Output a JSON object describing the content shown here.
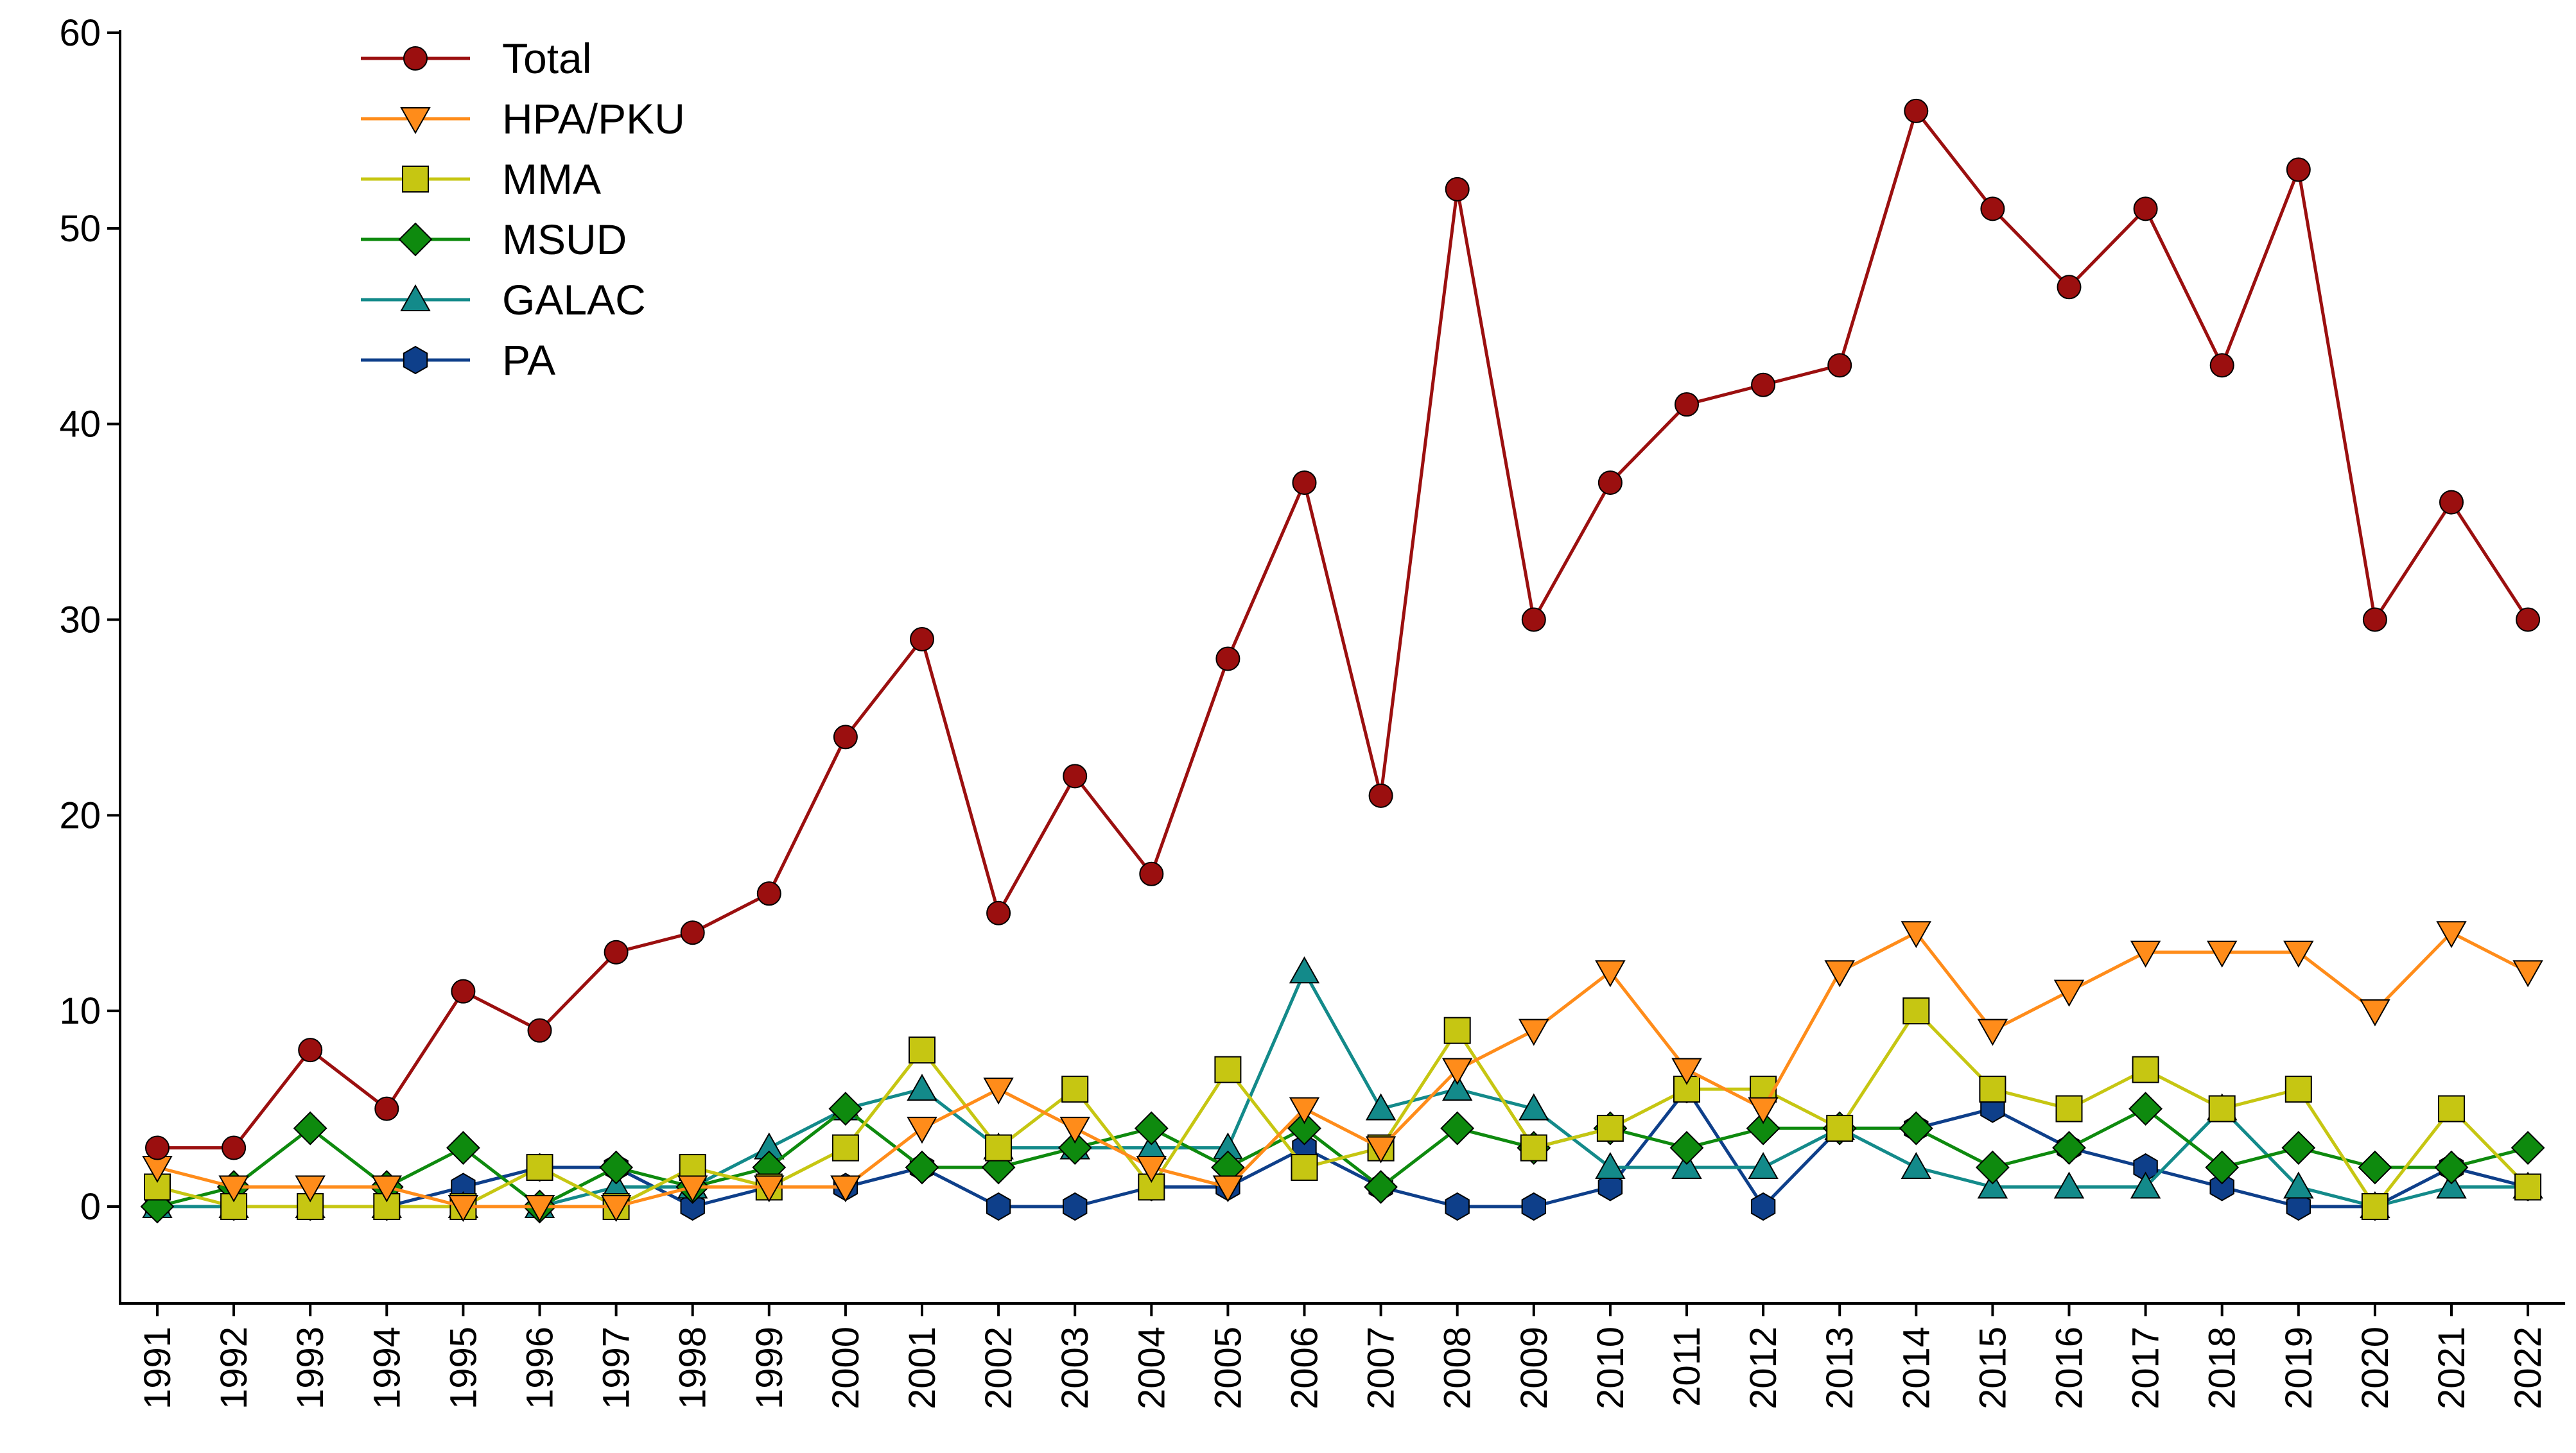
{
  "chart_data": {
    "type": "line",
    "title": "",
    "xlabel": "",
    "ylabel": "",
    "ylim": [
      -5,
      60
    ],
    "yticks": [
      0,
      10,
      20,
      30,
      40,
      50,
      60
    ],
    "legend_position": "top-left",
    "categories": [
      "1991",
      "1992",
      "1993",
      "1994",
      "1995",
      "1996",
      "1997",
      "1998",
      "1999",
      "2000",
      "2001",
      "2002",
      "2003",
      "2004",
      "2005",
      "2006",
      "2007",
      "2008",
      "2009",
      "2010",
      "2011",
      "2012",
      "2013",
      "2014",
      "2015",
      "2016",
      "2017",
      "2018",
      "2019",
      "2020",
      "2021",
      "2022"
    ],
    "series": [
      {
        "name": "Total",
        "color": "#9B0F0F",
        "marker": "circle",
        "values": [
          3,
          3,
          8,
          5,
          11,
          9,
          13,
          14,
          16,
          24,
          29,
          15,
          22,
          17,
          28,
          37,
          21,
          52,
          30,
          37,
          41,
          42,
          43,
          56,
          51,
          47,
          51,
          43,
          53,
          30,
          36,
          30
        ]
      },
      {
        "name": "HPA/PKU",
        "color": "#FF8C1A",
        "marker": "triangle-down",
        "values": [
          2,
          1,
          1,
          1,
          0,
          0,
          0,
          1,
          1,
          1,
          4,
          6,
          4,
          2,
          1,
          5,
          3,
          7,
          9,
          12,
          7,
          5,
          12,
          14,
          9,
          11,
          13,
          13,
          13,
          10,
          14,
          12
        ]
      },
      {
        "name": "MMA",
        "color": "#C6C612",
        "marker": "square",
        "values": [
          1,
          0,
          0,
          0,
          0,
          2,
          0,
          2,
          1,
          3,
          8,
          3,
          6,
          1,
          7,
          2,
          3,
          9,
          3,
          4,
          6,
          6,
          4,
          10,
          6,
          5,
          7,
          5,
          6,
          0,
          5,
          1
        ]
      },
      {
        "name": "MSUD",
        "color": "#0E8A0E",
        "marker": "diamond",
        "values": [
          0,
          1,
          4,
          1,
          3,
          0,
          2,
          1,
          2,
          5,
          2,
          2,
          3,
          4,
          2,
          4,
          1,
          4,
          3,
          4,
          3,
          4,
          4,
          4,
          2,
          3,
          5,
          2,
          3,
          2,
          2,
          3
        ]
      },
      {
        "name": "GALAC",
        "color": "#138A8A",
        "marker": "triangle-up",
        "values": [
          0,
          0,
          0,
          0,
          0,
          0,
          1,
          1,
          3,
          5,
          6,
          3,
          3,
          3,
          3,
          12,
          5,
          6,
          5,
          2,
          2,
          2,
          4,
          2,
          1,
          1,
          1,
          5,
          1,
          0,
          1,
          1
        ]
      },
      {
        "name": "PA",
        "color": "#0E3F8A",
        "marker": "hexagon",
        "values": [
          0,
          0,
          0,
          0,
          1,
          2,
          2,
          0,
          1,
          1,
          2,
          0,
          0,
          1,
          1,
          3,
          1,
          0,
          0,
          1,
          6,
          0,
          4,
          4,
          5,
          3,
          2,
          1,
          0,
          0,
          2,
          1
        ]
      }
    ]
  }
}
